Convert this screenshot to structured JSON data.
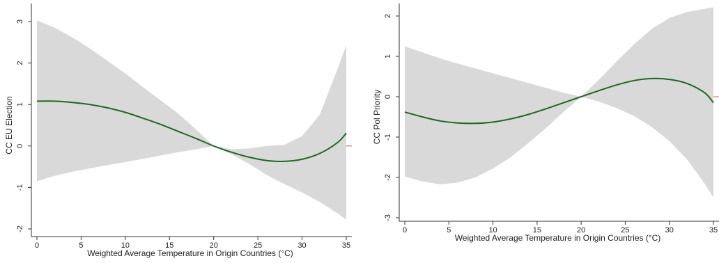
{
  "chart_data": [
    {
      "type": "line",
      "title": "",
      "xlabel": "Weighted Average Temperature in Origin Countries (°C)",
      "ylabel": "CC EU Election",
      "xlim": [
        0,
        35
      ],
      "ylim": [
        -2,
        3
      ],
      "xticks": [
        0,
        5,
        10,
        15,
        20,
        25,
        30,
        35
      ],
      "yticks": [
        -2,
        -1,
        0,
        1,
        2,
        3
      ],
      "grid": false,
      "reference_line": {
        "y": 0,
        "color": "#e05050"
      },
      "colors": {
        "line": "#1a6b1a",
        "band": "#d9d9d9"
      },
      "series": [
        {
          "x": [
            0,
            2,
            4,
            6,
            8,
            10,
            12,
            14,
            16,
            18,
            20,
            22,
            24,
            26,
            28,
            30,
            32,
            34,
            35
          ],
          "values": [
            1.08,
            1.08,
            1.05,
            1.0,
            0.92,
            0.81,
            0.67,
            0.52,
            0.35,
            0.18,
            0.0,
            -0.15,
            -0.27,
            -0.35,
            -0.37,
            -0.32,
            -0.18,
            0.08,
            0.31
          ],
          "ci_lower": [
            -0.85,
            -0.72,
            -0.62,
            -0.54,
            -0.46,
            -0.39,
            -0.31,
            -0.23,
            -0.15,
            -0.08,
            0.0,
            -0.2,
            -0.43,
            -0.7,
            -0.92,
            -1.12,
            -1.35,
            -1.62,
            -1.78
          ],
          "ci_upper": [
            3.03,
            2.85,
            2.62,
            2.35,
            2.05,
            1.75,
            1.42,
            1.1,
            0.78,
            0.4,
            0.0,
            -0.08,
            -0.06,
            0.0,
            0.03,
            0.24,
            0.75,
            1.85,
            2.43
          ]
        }
      ]
    },
    {
      "type": "line",
      "title": "",
      "xlabel": "Weighted Average Temperature in Origin Countries (°C)",
      "ylabel": "CC Pol Priority",
      "xlim": [
        0,
        35
      ],
      "ylim": [
        -3,
        2
      ],
      "xticks": [
        0,
        5,
        10,
        15,
        20,
        25,
        30,
        35
      ],
      "yticks": [
        -3,
        -2,
        -1,
        0,
        1,
        2
      ],
      "grid": false,
      "reference_line": {
        "y": 0,
        "color": "#e05050"
      },
      "colors": {
        "line": "#1a6b1a",
        "band": "#d9d9d9"
      },
      "series": [
        {
          "x": [
            0,
            2,
            4,
            6,
            8,
            10,
            12,
            14,
            16,
            18,
            20,
            22,
            24,
            26,
            28,
            30,
            32,
            34,
            35
          ],
          "values": [
            -0.38,
            -0.5,
            -0.6,
            -0.65,
            -0.66,
            -0.63,
            -0.55,
            -0.44,
            -0.3,
            -0.15,
            0.0,
            0.15,
            0.29,
            0.4,
            0.45,
            0.43,
            0.33,
            0.1,
            -0.15
          ],
          "ci_lower": [
            -1.98,
            -2.1,
            -2.17,
            -2.13,
            -2.0,
            -1.78,
            -1.5,
            -1.15,
            -0.78,
            -0.38,
            0.0,
            -0.12,
            -0.28,
            -0.48,
            -0.75,
            -1.1,
            -1.55,
            -2.15,
            -2.5
          ],
          "ci_upper": [
            1.25,
            1.1,
            0.95,
            0.82,
            0.7,
            0.58,
            0.46,
            0.34,
            0.22,
            0.1,
            0.0,
            0.42,
            0.87,
            1.3,
            1.68,
            1.95,
            2.1,
            2.18,
            2.22
          ]
        }
      ]
    }
  ]
}
